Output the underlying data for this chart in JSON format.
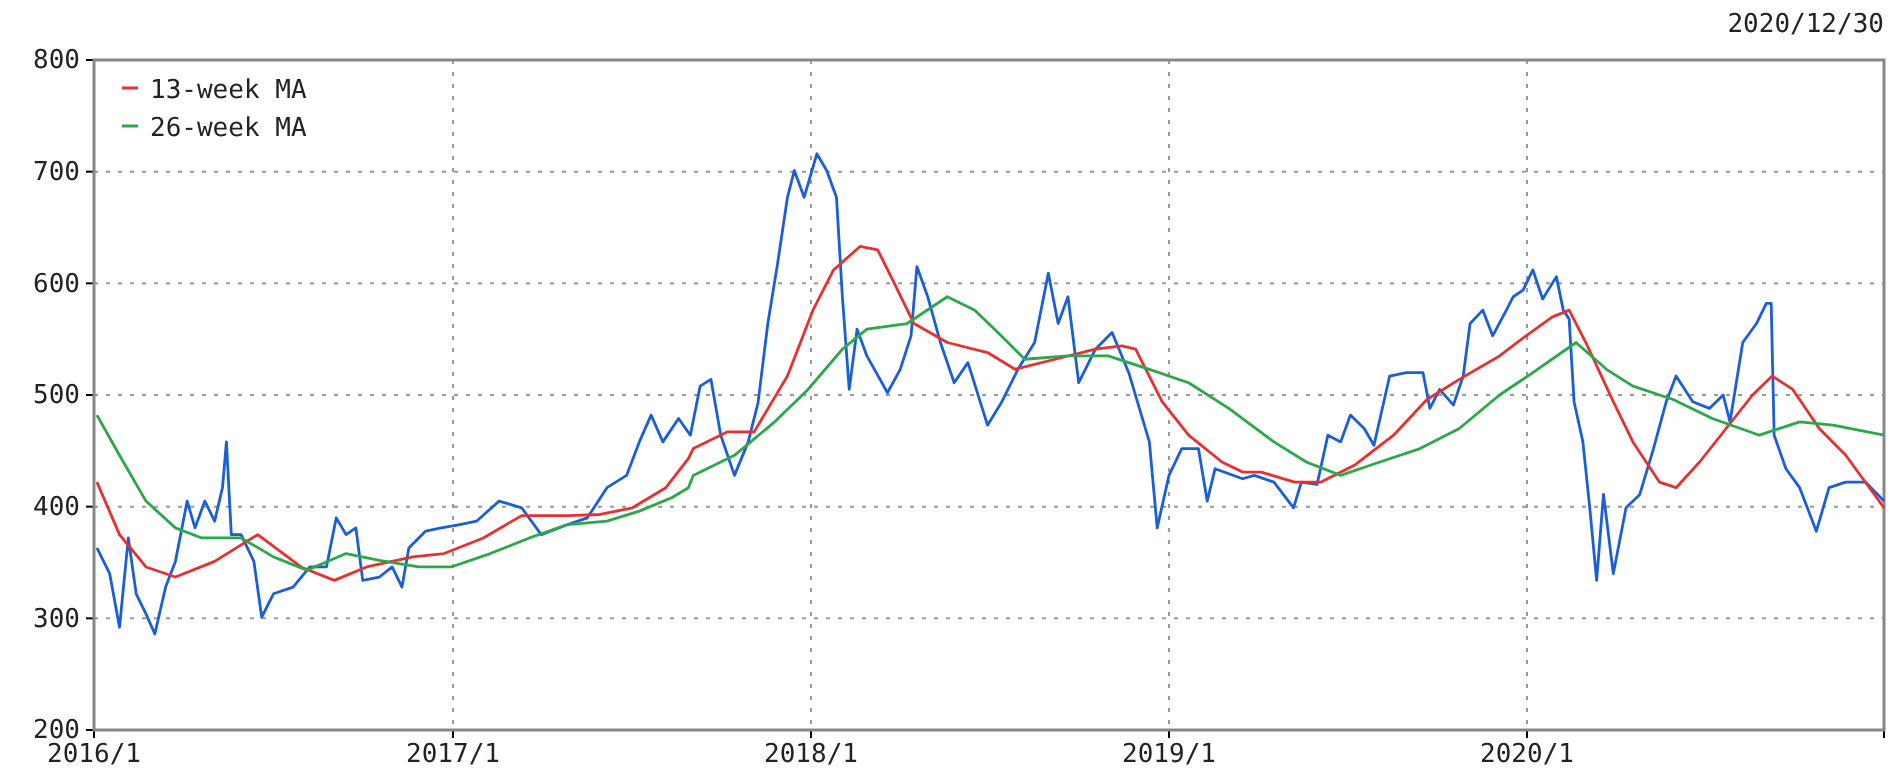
{
  "chart_data": {
    "type": "line",
    "subtitle": "2020/12/30",
    "xlim": [
      "2016-01-01",
      "2020-12-30"
    ],
    "xticks": [
      {
        "value": "2016-01-01",
        "label": "2016/1"
      },
      {
        "value": "2017-01-01",
        "label": "2017/1"
      },
      {
        "value": "2018-01-01",
        "label": "2018/1"
      },
      {
        "value": "2019-01-01",
        "label": "2019/1"
      },
      {
        "value": "2020-01-01",
        "label": "2020/1"
      }
    ],
    "ylim": [
      200,
      800
    ],
    "yticks": [
      200,
      300,
      400,
      500,
      600,
      700,
      800
    ],
    "grid": true,
    "legend": "top left",
    "series": [
      {
        "color": "#1a5fd8",
        "x": [
          "2016-01-04",
          "2016-01-17",
          "2016-01-27",
          "2016-02-05",
          "2016-02-13",
          "2016-02-23",
          "2016-03-03",
          "2016-03-14",
          "2016-03-24",
          "2016-04-05",
          "2016-04-13",
          "2016-04-23",
          "2016-05-03",
          "2016-05-11",
          "2016-05-15",
          "2016-05-20",
          "2016-05-30",
          "2016-06-12",
          "2016-06-20",
          "2016-07-02",
          "2016-07-22",
          "2016-08-08",
          "2016-08-25",
          "2016-09-04",
          "2016-09-14",
          "2016-09-24",
          "2016-10-01",
          "2016-10-18",
          "2016-10-31",
          "2016-11-10",
          "2016-11-17",
          "2016-12-04",
          "2016-12-20",
          "2017-01-08",
          "2017-01-25",
          "2017-02-17",
          "2017-03-12",
          "2017-04-01",
          "2017-04-28",
          "2017-05-18",
          "2017-06-07",
          "2017-06-27",
          "2017-07-10",
          "2017-07-22",
          "2017-08-03",
          "2017-08-19",
          "2017-08-31",
          "2017-09-10",
          "2017-09-21",
          "2017-10-01",
          "2017-10-15",
          "2017-10-29",
          "2017-11-08",
          "2017-11-18",
          "2017-11-28",
          "2017-12-08",
          "2017-12-15",
          "2017-12-25",
          "2018-01-07",
          "2018-01-17",
          "2018-01-27",
          "2018-02-02",
          "2018-02-09",
          "2018-02-17",
          "2018-02-27",
          "2018-03-20",
          "2018-04-02",
          "2018-04-13",
          "2018-04-19",
          "2018-04-30",
          "2018-05-13",
          "2018-05-27",
          "2018-06-10",
          "2018-06-30",
          "2018-07-14",
          "2018-07-31",
          "2018-08-17",
          "2018-08-31",
          "2018-09-10",
          "2018-09-20",
          "2018-10-01",
          "2018-10-18",
          "2018-11-04",
          "2018-11-21",
          "2018-12-12",
          "2018-12-20",
          "2019-01-01",
          "2019-01-14",
          "2019-01-31",
          "2019-02-09",
          "2019-02-17",
          "2019-03-17",
          "2019-03-29",
          "2019-04-18",
          "2019-05-08",
          "2019-05-16",
          "2019-06-01",
          "2019-06-12",
          "2019-06-25",
          "2019-07-05",
          "2019-07-19",
          "2019-07-29",
          "2019-08-14",
          "2019-08-31",
          "2019-09-17",
          "2019-09-24",
          "2019-10-04",
          "2019-10-18",
          "2019-10-28",
          "2019-11-04",
          "2019-11-17",
          "2019-11-27",
          "2019-12-11",
          "2019-12-18",
          "2019-12-28",
          "2020-01-07",
          "2020-01-17",
          "2020-01-31",
          "2020-02-07",
          "2020-02-13",
          "2020-02-18",
          "2020-02-27",
          "2020-03-05",
          "2020-03-12",
          "2020-03-19",
          "2020-03-29",
          "2020-04-11",
          "2020-04-25",
          "2020-05-09",
          "2020-05-22",
          "2020-06-01",
          "2020-06-18",
          "2020-07-05",
          "2020-07-19",
          "2020-07-26",
          "2020-08-08",
          "2020-08-22",
          "2020-09-01",
          "2020-09-06",
          "2020-09-09",
          "2020-09-21",
          "2020-10-05",
          "2020-10-22",
          "2020-11-04",
          "2020-11-21",
          "2020-12-11",
          "2020-12-30"
        ],
        "values": [
          363,
          340,
          292,
          372,
          322,
          304,
          286,
          328,
          351,
          405,
          381,
          405,
          387,
          417,
          458,
          375,
          375,
          351,
          301,
          322,
          328,
          346,
          346,
          390,
          375,
          381,
          334,
          337,
          346,
          328,
          363,
          378,
          381,
          384,
          387,
          405,
          399,
          375,
          384,
          390,
          417,
          428,
          458,
          482,
          458,
          479,
          464,
          508,
          514,
          464,
          428,
          458,
          493,
          564,
          618,
          677,
          701,
          677,
          716,
          701,
          677,
          588,
          505,
          559,
          535,
          502,
          523,
          553,
          615,
          588,
          547,
          511,
          529,
          473,
          493,
          523,
          547,
          609,
          564,
          588,
          511,
          541,
          556,
          520,
          458,
          381,
          428,
          452,
          452,
          405,
          434,
          425,
          428,
          422,
          399,
          422,
          420,
          464,
          458,
          482,
          470,
          455,
          517,
          520,
          520,
          488,
          505,
          491,
          517,
          564,
          576,
          553,
          576,
          588,
          594,
          612,
          586,
          606,
          576,
          568,
          494,
          458,
          399,
          334,
          411,
          340,
          399,
          411,
          452,
          494,
          517,
          494,
          488,
          500,
          476,
          547,
          564,
          582,
          582,
          464,
          434,
          417,
          378,
          417,
          422,
          422,
          405
        ]
      },
      {
        "name": "13-week MA",
        "color": "#e83030",
        "x": [
          "2016-01-04",
          "2016-01-27",
          "2016-02-23",
          "2016-03-24",
          "2016-05-03",
          "2016-06-16",
          "2016-07-30",
          "2016-09-02",
          "2016-10-05",
          "2016-11-21",
          "2016-12-23",
          "2017-02-01",
          "2017-03-12",
          "2017-04-28",
          "2017-05-31",
          "2017-07-03",
          "2017-08-06",
          "2017-08-29",
          "2017-09-03",
          "2017-10-08",
          "2017-11-04",
          "2017-12-08",
          "2018-01-03",
          "2018-01-24",
          "2018-02-20",
          "2018-03-10",
          "2018-03-27",
          "2018-04-16",
          "2018-05-20",
          "2018-06-30",
          "2018-07-28",
          "2018-09-07",
          "2018-10-18",
          "2018-11-14",
          "2018-11-28",
          "2018-12-25",
          "2019-01-21",
          "2019-02-24",
          "2019-03-17",
          "2019-04-05",
          "2019-05-09",
          "2019-06-05",
          "2019-07-09",
          "2019-08-18",
          "2019-09-21",
          "2019-10-24",
          "2019-12-04",
          "2019-12-31",
          "2020-01-27",
          "2020-02-13",
          "2020-03-01",
          "2020-03-29",
          "2020-04-18",
          "2020-05-15",
          "2020-06-01",
          "2020-06-25",
          "2020-07-22",
          "2020-08-18",
          "2020-09-07",
          "2020-09-28",
          "2020-10-25",
          "2020-11-21",
          "2020-12-30"
        ],
        "values": [
          422,
          375,
          346,
          337,
          351,
          375,
          346,
          334,
          346,
          355,
          358,
          372,
          392,
          392,
          393,
          399,
          417,
          443,
          452,
          467,
          467,
          517,
          576,
          612,
          633,
          630,
          600,
          564,
          547,
          538,
          523,
          532,
          541,
          544,
          541,
          494,
          464,
          440,
          431,
          431,
          422,
          422,
          437,
          464,
          496,
          514,
          535,
          553,
          570,
          576,
          547,
          494,
          458,
          422,
          417,
          440,
          470,
          500,
          517,
          505,
          470,
          446,
          399
        ]
      },
      {
        "name": "26-week MA",
        "color": "#2aa84a",
        "x": [
          "2016-01-04",
          "2016-01-27",
          "2016-02-23",
          "2016-03-24",
          "2016-04-20",
          "2016-05-30",
          "2016-07-02",
          "2016-08-05",
          "2016-09-14",
          "2016-10-18",
          "2016-11-27",
          "2016-12-30",
          "2017-02-08",
          "2017-03-20",
          "2017-04-28",
          "2017-06-07",
          "2017-07-10",
          "2017-08-12",
          "2017-08-29",
          "2017-09-03",
          "2017-10-15",
          "2017-11-25",
          "2017-12-29",
          "2018-02-02",
          "2018-02-27",
          "2018-04-09",
          "2018-05-20",
          "2018-06-17",
          "2018-07-14",
          "2018-08-07",
          "2018-09-20",
          "2018-10-31",
          "2018-12-12",
          "2019-01-21",
          "2019-03-03",
          "2019-04-18",
          "2019-05-21",
          "2019-06-25",
          "2019-08-04",
          "2019-09-14",
          "2019-10-24",
          "2019-12-04",
          "2020-01-07",
          "2020-02-20",
          "2020-03-22",
          "2020-04-18",
          "2020-05-29",
          "2020-07-08",
          "2020-08-25",
          "2020-10-05",
          "2020-11-08",
          "2020-12-30"
        ],
        "values": [
          482,
          446,
          405,
          381,
          372,
          372,
          355,
          343,
          358,
          352,
          346,
          346,
          358,
          372,
          384,
          387,
          396,
          408,
          417,
          428,
          446,
          476,
          505,
          541,
          559,
          564,
          588,
          576,
          553,
          532,
          535,
          535,
          523,
          511,
          488,
          458,
          440,
          428,
          440,
          452,
          470,
          500,
          520,
          547,
          523,
          508,
          496,
          479,
          464,
          476,
          473,
          464
        ]
      }
    ]
  }
}
